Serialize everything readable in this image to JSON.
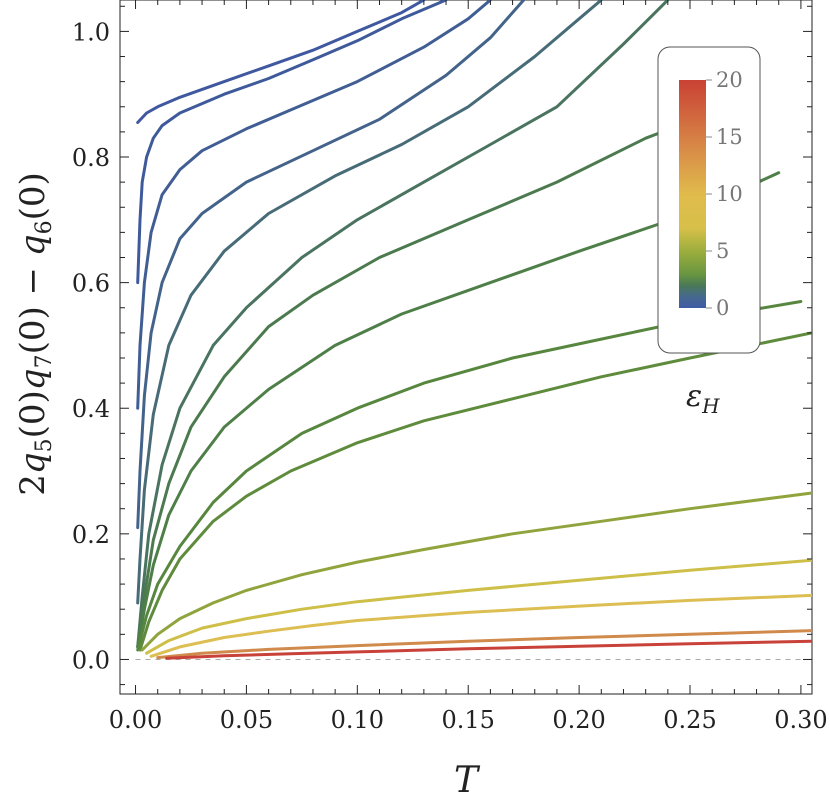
{
  "chart_data": {
    "type": "line",
    "title": "",
    "xlabel": "T",
    "ylabel": "2q5(0)q7(0) − q6(0)",
    "ylabel_parts": [
      "2",
      "q",
      "5",
      "(0)",
      "q",
      "7",
      "(0) − ",
      "q",
      "6",
      "(0)"
    ],
    "xlim": [
      -0.007,
      0.305
    ],
    "ylim": [
      -0.055,
      1.05
    ],
    "x_ticks": [
      0.0,
      0.05,
      0.1,
      0.15,
      0.2,
      0.25,
      0.3
    ],
    "x_tick_labels": [
      "0.00",
      "0.05",
      "0.10",
      "0.15",
      "0.20",
      "0.25",
      "0.30"
    ],
    "y_ticks": [
      0.0,
      0.2,
      0.4,
      0.6,
      0.8,
      1.0
    ],
    "y_tick_labels": [
      "0.0",
      "0.2",
      "0.4",
      "0.6",
      "0.8",
      "1.0"
    ],
    "reference_line": {
      "y": 0.0,
      "style": "dashed",
      "color": "#aaaaaa"
    },
    "grid": false,
    "legend": {
      "type": "colorbar",
      "placement": "top-right",
      "label_symbol": "ε",
      "label_subscript": "H",
      "range": [
        0,
        20
      ],
      "tick_values": [
        0,
        5,
        10,
        15,
        20
      ],
      "tick_labels": [
        "0",
        "5",
        "10",
        "15",
        "20"
      ],
      "gradient": [
        {
          "value": 0,
          "color": "#3f5aa5"
        },
        {
          "value": 1,
          "color": "#46698f"
        },
        {
          "value": 2,
          "color": "#4b7a55"
        },
        {
          "value": 3,
          "color": "#6a9640"
        },
        {
          "value": 5,
          "color": "#9cae3c"
        },
        {
          "value": 7,
          "color": "#d7c04a"
        },
        {
          "value": 10,
          "color": "#e0bb4c"
        },
        {
          "value": 14,
          "color": "#d88a47"
        },
        {
          "value": 20,
          "color": "#c94134"
        }
      ]
    },
    "series": [
      {
        "color": "#3f58a0",
        "x": [
          0.001,
          0.005,
          0.01,
          0.02,
          0.04,
          0.06,
          0.08,
          0.1,
          0.12,
          0.13
        ],
        "y": [
          0.855,
          0.87,
          0.88,
          0.895,
          0.92,
          0.945,
          0.97,
          1.0,
          1.03,
          1.05
        ]
      },
      {
        "color": "#3f5a9b",
        "x": [
          0.001,
          0.002,
          0.003,
          0.005,
          0.008,
          0.012,
          0.02,
          0.04,
          0.06,
          0.08,
          0.1,
          0.12,
          0.14
        ],
        "y": [
          0.6,
          0.7,
          0.76,
          0.8,
          0.83,
          0.85,
          0.87,
          0.9,
          0.925,
          0.955,
          0.985,
          1.02,
          1.05
        ]
      },
      {
        "color": "#415e94",
        "x": [
          0.001,
          0.002,
          0.004,
          0.007,
          0.012,
          0.02,
          0.03,
          0.05,
          0.07,
          0.1,
          0.13,
          0.15,
          0.16
        ],
        "y": [
          0.4,
          0.5,
          0.6,
          0.68,
          0.74,
          0.78,
          0.81,
          0.845,
          0.875,
          0.92,
          0.975,
          1.02,
          1.05
        ]
      },
      {
        "color": "#44638a",
        "x": [
          0.001,
          0.002,
          0.004,
          0.007,
          0.012,
          0.02,
          0.03,
          0.05,
          0.08,
          0.11,
          0.14,
          0.16,
          0.175
        ],
        "y": [
          0.21,
          0.3,
          0.42,
          0.52,
          0.6,
          0.67,
          0.71,
          0.76,
          0.81,
          0.86,
          0.93,
          0.99,
          1.05
        ]
      },
      {
        "color": "#476b77",
        "x": [
          0.001,
          0.002,
          0.004,
          0.008,
          0.015,
          0.025,
          0.04,
          0.06,
          0.09,
          0.12,
          0.15,
          0.18,
          0.2,
          0.21
        ],
        "y": [
          0.09,
          0.16,
          0.27,
          0.39,
          0.5,
          0.58,
          0.65,
          0.71,
          0.77,
          0.82,
          0.88,
          0.96,
          1.02,
          1.05
        ]
      },
      {
        "color": "#4a7360",
        "x": [
          0.001,
          0.003,
          0.006,
          0.012,
          0.02,
          0.035,
          0.05,
          0.075,
          0.1,
          0.13,
          0.16,
          0.19,
          0.22,
          0.24
        ],
        "y": [
          0.02,
          0.1,
          0.2,
          0.31,
          0.4,
          0.5,
          0.56,
          0.64,
          0.7,
          0.76,
          0.82,
          0.88,
          0.98,
          1.05
        ]
      },
      {
        "color": "#4c7a4f",
        "x": [
          0.001,
          0.004,
          0.008,
          0.015,
          0.025,
          0.04,
          0.06,
          0.08,
          0.11,
          0.15,
          0.19,
          0.23,
          0.26
        ],
        "y": [
          0.02,
          0.1,
          0.19,
          0.28,
          0.37,
          0.45,
          0.53,
          0.58,
          0.64,
          0.7,
          0.76,
          0.83,
          0.87
        ]
      },
      {
        "color": "#4f7f48",
        "x": [
          0.001,
          0.004,
          0.008,
          0.015,
          0.025,
          0.04,
          0.06,
          0.09,
          0.12,
          0.16,
          0.2,
          0.25,
          0.29
        ],
        "y": [
          0.02,
          0.08,
          0.15,
          0.23,
          0.3,
          0.37,
          0.43,
          0.5,
          0.55,
          0.6,
          0.65,
          0.71,
          0.775
        ]
      },
      {
        "color": "#57873f",
        "x": [
          0.001,
          0.005,
          0.01,
          0.02,
          0.035,
          0.05,
          0.075,
          0.1,
          0.13,
          0.17,
          0.21,
          0.25,
          0.3
        ],
        "y": [
          0.015,
          0.07,
          0.12,
          0.18,
          0.25,
          0.3,
          0.36,
          0.4,
          0.44,
          0.48,
          0.51,
          0.54,
          0.57
        ]
      },
      {
        "color": "#5f8b3c",
        "x": [
          0.002,
          0.006,
          0.012,
          0.02,
          0.035,
          0.05,
          0.07,
          0.1,
          0.13,
          0.17,
          0.21,
          0.25,
          0.305
        ],
        "y": [
          0.015,
          0.06,
          0.11,
          0.16,
          0.22,
          0.26,
          0.3,
          0.345,
          0.38,
          0.415,
          0.45,
          0.48,
          0.52
        ]
      },
      {
        "color": "#8fa43c",
        "x": [
          0.003,
          0.01,
          0.02,
          0.035,
          0.05,
          0.075,
          0.1,
          0.13,
          0.17,
          0.21,
          0.25,
          0.305
        ],
        "y": [
          0.015,
          0.04,
          0.065,
          0.09,
          0.11,
          0.135,
          0.155,
          0.175,
          0.2,
          0.22,
          0.24,
          0.265
        ]
      },
      {
        "color": "#cdbf48",
        "x": [
          0.005,
          0.015,
          0.03,
          0.05,
          0.075,
          0.1,
          0.15,
          0.2,
          0.25,
          0.305
        ],
        "y": [
          0.01,
          0.03,
          0.05,
          0.065,
          0.08,
          0.092,
          0.11,
          0.126,
          0.142,
          0.158
        ]
      },
      {
        "color": "#dcbe52",
        "x": [
          0.007,
          0.02,
          0.04,
          0.06,
          0.08,
          0.1,
          0.15,
          0.2,
          0.25,
          0.305
        ],
        "y": [
          0.005,
          0.02,
          0.035,
          0.045,
          0.054,
          0.062,
          0.075,
          0.085,
          0.094,
          0.102
        ]
      },
      {
        "color": "#d08a4b",
        "x": [
          0.01,
          0.03,
          0.06,
          0.1,
          0.15,
          0.2,
          0.25,
          0.305
        ],
        "y": [
          0.003,
          0.01,
          0.016,
          0.022,
          0.029,
          0.035,
          0.04,
          0.046
        ]
      },
      {
        "color": "#c9423a",
        "x": [
          0.014,
          0.04,
          0.07,
          0.1,
          0.15,
          0.2,
          0.25,
          0.305
        ],
        "y": [
          0.002,
          0.006,
          0.009,
          0.012,
          0.017,
          0.021,
          0.025,
          0.029
        ]
      }
    ]
  }
}
